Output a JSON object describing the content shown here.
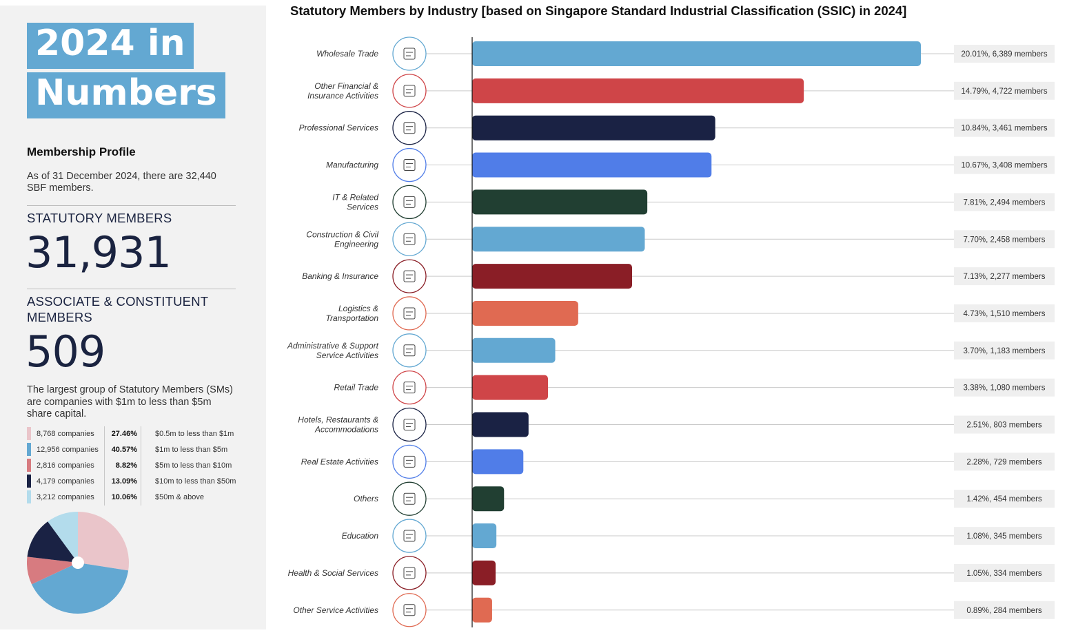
{
  "left_panel": {
    "title_line1": "2024 in",
    "title_line2": "Numbers",
    "membership_profile_heading": "Membership Profile",
    "membership_profile_text": "As of 31 December 2024, there are 32,440 SBF members.",
    "statutory_label": "STATUTORY MEMBERS",
    "statutory_value": "31,931",
    "associate_label": "ASSOCIATE & CONSTITUENT MEMBERS",
    "associate_value": "509",
    "largest_group_text": "The largest group of Statutory Members (SMs) are companies with $1m to less than $5m share capital.",
    "share_capital": [
      {
        "count": "8,768 companies",
        "percent": "27.46%",
        "percent_value": 27.46,
        "range": "$0.5m to less than $1m",
        "color": "#eac5ca"
      },
      {
        "count": "12,956 companies",
        "percent": "40.57%",
        "percent_value": 40.57,
        "range": "$1m to less than $5m",
        "color": "#63a8d2"
      },
      {
        "count": "2,816 companies",
        "percent": "8.82%",
        "percent_value": 8.82,
        "range": "$5m to less than $10m",
        "color": "#d77b80"
      },
      {
        "count": "4,179 companies",
        "percent": "13.09%",
        "percent_value": 13.09,
        "range": "$10m to less than $50m",
        "color": "#1a2244"
      },
      {
        "count": "3,212 companies",
        "percent": "10.06%",
        "percent_value": 10.06,
        "range": "$50m & above",
        "color": "#b3dcec"
      }
    ]
  },
  "chart_data": {
    "type": "bar",
    "orientation": "horizontal",
    "title": "Statutory Members by Industry [based on Singapore Standard Industrial Classification (SSIC) in 2024]",
    "categories": [
      "Wholesale Trade",
      "Other Financial & Insurance Activities",
      "Professional Services",
      "Manufacturing",
      "IT & Related Services",
      "Construction & Civil Engineering",
      "Banking & Insurance",
      "Logistics & Transportation",
      "Administrative & Support Service Activities",
      "Retail Trade",
      "Hotels, Restaurants & Accommodations",
      "Real Estate Activities",
      "Others",
      "Education",
      "Health & Social Services",
      "Other Service Activities"
    ],
    "category_lines": [
      [
        "Wholesale Trade"
      ],
      [
        "Other Financial &",
        "Insurance Activities"
      ],
      [
        "Professional Services"
      ],
      [
        "Manufacturing"
      ],
      [
        "IT & Related",
        "Services"
      ],
      [
        "Construction & Civil",
        "Engineering"
      ],
      [
        "Banking & Insurance"
      ],
      [
        "Logistics &",
        "Transportation"
      ],
      [
        "Administrative & Support",
        "Service Activities"
      ],
      [
        "Retail Trade"
      ],
      [
        "Hotels, Restaurants &",
        "Accommodations"
      ],
      [
        "Real Estate Activities"
      ],
      [
        "Others"
      ],
      [
        "Education"
      ],
      [
        "Health & Social Services"
      ],
      [
        "Other Service Activities"
      ]
    ],
    "values": [
      6389,
      4722,
      3461,
      3408,
      2494,
      2458,
      2277,
      1510,
      1183,
      1080,
      803,
      729,
      454,
      345,
      334,
      284
    ],
    "percent": [
      20.01,
      14.79,
      10.84,
      10.67,
      7.81,
      7.7,
      7.13,
      4.73,
      3.7,
      3.38,
      2.51,
      2.28,
      1.42,
      1.08,
      1.05,
      0.89
    ],
    "value_labels": [
      "20.01%, 6,389 members",
      "14.79%, 4,722 members",
      "10.84%, 3,461 members",
      "10.67%, 3,408 members",
      "7.81%, 2,494 members",
      "7.70%, 2,458 members",
      "7.13%, 2,277 members",
      "4.73%, 1,510 members",
      "3.70%, 1,183 members",
      "3.38%, 1,080 members",
      "2.51%, 803 members",
      "2.28%, 729 members",
      "1.42%, 454 members",
      "1.08%, 345 members",
      "1.05%, 334 members",
      "0.89%, 284 members"
    ],
    "colors": [
      "#63a8d2",
      "#cf4548",
      "#1a2244",
      "#507de8",
      "#213f32",
      "#63a8d2",
      "#8a1e26",
      "#e06a52",
      "#63a8d2",
      "#cf4548",
      "#1a2244",
      "#507de8",
      "#213f32",
      "#63a8d2",
      "#8a1e26",
      "#e06a52"
    ],
    "icon_colors": [
      "#63a8d2",
      "#cf4548",
      "#1a2244",
      "#507de8",
      "#213f32",
      "#63a8d2",
      "#8a1e26",
      "#e06a52",
      "#63a8d2",
      "#cf4548",
      "#1a2244",
      "#507de8",
      "#213f32",
      "#63a8d2",
      "#8a1e26",
      "#e06a52"
    ],
    "icons": [
      "handshake-icon",
      "financial-report-icon",
      "professional-service-icon",
      "factory-icon",
      "computer-icon",
      "gears-icon",
      "bank-icon",
      "logistics-icon",
      "admin-desk-icon",
      "storefront-icon",
      "hotel-icon",
      "real-estate-icon",
      "grid-icon",
      "education-icon",
      "health-care-icon",
      "service-icon"
    ],
    "xlim": [
      0,
      6389
    ],
    "grid": false,
    "legend": "none"
  }
}
